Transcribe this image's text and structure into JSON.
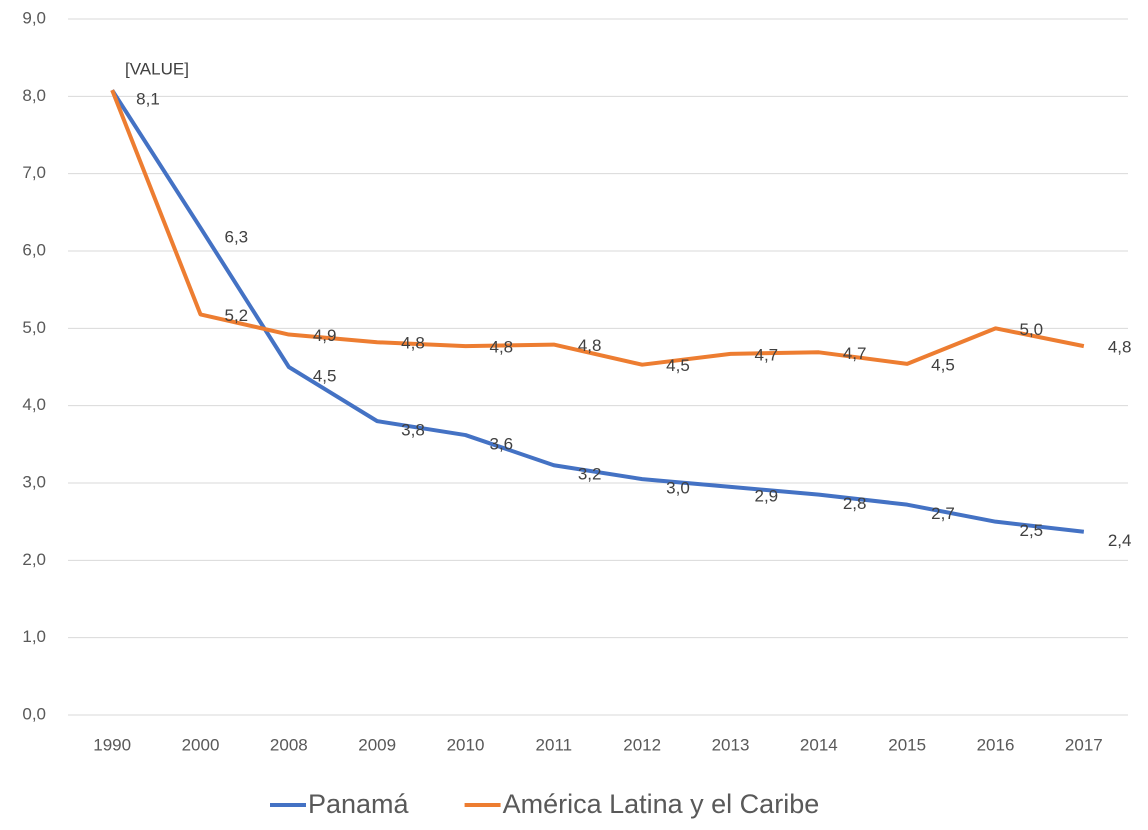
{
  "chart_data": {
    "type": "line",
    "categories": [
      "1990",
      "2000",
      "2008",
      "2009",
      "2010",
      "2011",
      "2012",
      "2013",
      "2014",
      "2015",
      "2016",
      "2017"
    ],
    "series": [
      {
        "name": "Panamá",
        "color": "#4472c4",
        "values": [
          8.08,
          6.3,
          4.5,
          3.8,
          3.62,
          3.23,
          3.05,
          2.95,
          2.85,
          2.72,
          2.5,
          2.37
        ],
        "value_labels": [
          "8,1",
          "6,3",
          "4,5",
          "3,8",
          "3,6",
          "3,2",
          "3,0",
          "2,9",
          "2,8",
          "2,7",
          "2,5",
          "2,4"
        ]
      },
      {
        "name": "América Latina y el Caribe",
        "color": "#ed7d31",
        "values": [
          8.08,
          5.18,
          4.92,
          4.82,
          4.77,
          4.79,
          4.53,
          4.67,
          4.69,
          4.54,
          5.0,
          4.77
        ],
        "value_labels": [
          null,
          "5,2",
          "4,9",
          "4,8",
          "4,8",
          "4,8",
          "4,5",
          "4,7",
          "4,7",
          "4,5",
          "5,0",
          "4,8"
        ]
      }
    ],
    "annotation": "[VALUE]",
    "ylim": [
      0,
      9
    ],
    "yticks": [
      {
        "value": 0,
        "label": "0,0"
      },
      {
        "value": 1,
        "label": "1,0"
      },
      {
        "value": 2,
        "label": "2,0"
      },
      {
        "value": 3,
        "label": "3,0"
      },
      {
        "value": 4,
        "label": "4,0"
      },
      {
        "value": 5,
        "label": "5,0"
      },
      {
        "value": 6,
        "label": "6,0"
      },
      {
        "value": 7,
        "label": "7,0"
      },
      {
        "value": 8,
        "label": "8,0"
      },
      {
        "value": 9,
        "label": "9,0"
      }
    ],
    "grid": true,
    "legend": "bottom"
  }
}
